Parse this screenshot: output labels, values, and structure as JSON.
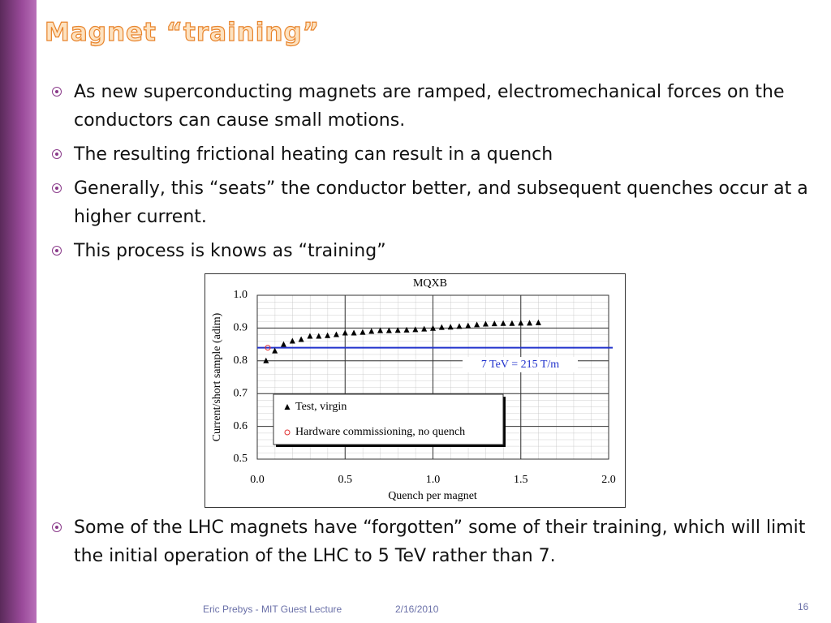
{
  "title": "Magnet “training”",
  "bullets": [
    "As new superconducting magnets are ramped, electromechanical forces on the conductors can cause small motions.",
    "The resulting frictional heating can result in a quench",
    "Generally, this “seats” the conductor better, and subsequent quenches occur at a higher current.",
    "This process is knows as “training”",
    "Some of the LHC magnets have “forgotten” some of their training, which will limit the initial operation of the LHC to 5 TeV rather than 7."
  ],
  "chart_data": {
    "type": "scatter",
    "title": "MQXB",
    "x_label": "Quench per magnet",
    "y_label": "Current/short sample (adim)",
    "xlim": [
      0,
      2
    ],
    "ylim": [
      0.5,
      1.0
    ],
    "xticks": [
      {
        "value": 0,
        "label": "0.0"
      },
      0.5,
      {
        "value": 1,
        "label": "1.0"
      },
      1.5,
      {
        "value": 2,
        "label": "2.0"
      }
    ],
    "yticks": [
      0.5,
      0.6,
      0.7,
      0.8,
      0.9,
      {
        "value": 1,
        "label": "1.0"
      }
    ],
    "grid": true,
    "series": [
      {
        "name": "Test, virgin",
        "marker": "triangle",
        "color": "#000000",
        "x": [
          0.05,
          0.1,
          0.15,
          0.2,
          0.25,
          0.3,
          0.35,
          0.4,
          0.45,
          0.5,
          0.55,
          0.6,
          0.65,
          0.7,
          0.75,
          0.8,
          0.85,
          0.9,
          0.95,
          1.0,
          1.05,
          1.1,
          1.15,
          1.2,
          1.25,
          1.3,
          1.35,
          1.4,
          1.45,
          1.5,
          1.55,
          1.6
        ],
        "values": [
          0.8,
          0.83,
          0.85,
          0.86,
          0.865,
          0.875,
          0.875,
          0.877,
          0.88,
          0.885,
          0.885,
          0.887,
          0.89,
          0.892,
          0.892,
          0.893,
          0.894,
          0.895,
          0.897,
          0.899,
          0.902,
          0.903,
          0.905,
          0.907,
          0.91,
          0.912,
          0.913,
          0.914,
          0.914,
          0.915,
          0.915,
          0.916
        ]
      },
      {
        "name": "Hardware commissioning, no quench",
        "marker": "circle",
        "color": "#e03030",
        "x": [
          0.06
        ],
        "values": [
          0.84
        ]
      }
    ],
    "reference_line": {
      "value": 0.84,
      "label": "7 TeV = 215 T/m",
      "color": "#2233cc"
    }
  },
  "footer": {
    "author": "Eric Prebys - MIT Guest Lecture",
    "date": "2/16/2010",
    "page": "16"
  }
}
